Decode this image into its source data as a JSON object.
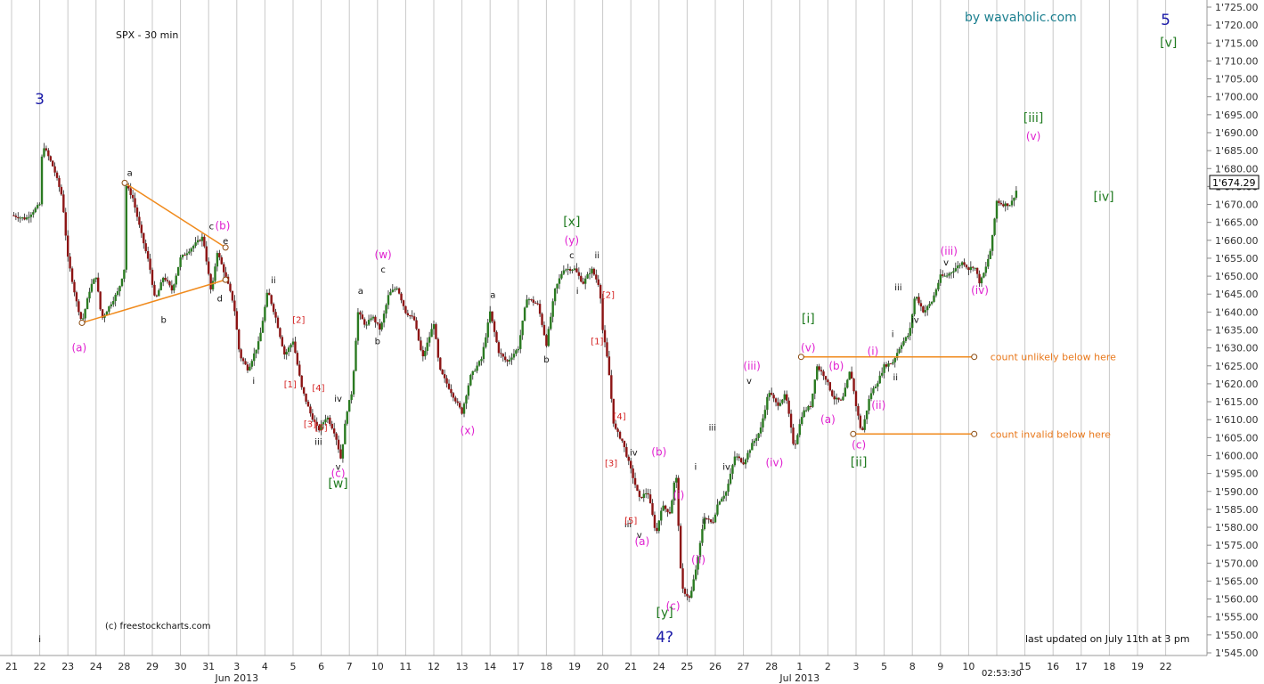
{
  "chart_data": {
    "type": "candlestick",
    "title": "SPX - 30 min",
    "watermark": "by wavaholic.com",
    "credit": "(c) freestockcharts.com",
    "footnote": "last updated on July 11th at 3 pm",
    "clock": "02:53:30",
    "last_price_label": "1'674.29",
    "last_price": 1674.29,
    "ylim": [
      1545,
      1725
    ],
    "y_ticks": [
      "1'545.00",
      "1'550.00",
      "1'555.00",
      "1'560.00",
      "1'565.00",
      "1'570.00",
      "1'575.00",
      "1'580.00",
      "1'585.00",
      "1'590.00",
      "1'595.00",
      "1'600.00",
      "1'605.00",
      "1'610.00",
      "1'615.00",
      "1'620.00",
      "1'625.00",
      "1'630.00",
      "1'635.00",
      "1'640.00",
      "1'645.00",
      "1'650.00",
      "1'655.00",
      "1'660.00",
      "1'665.00",
      "1'670.00",
      "1'675.00",
      "1'680.00",
      "1'685.00",
      "1'690.00",
      "1'695.00",
      "1'700.00",
      "1'705.00",
      "1'710.00",
      "1'715.00",
      "1'720.00",
      "1'725.00"
    ],
    "x_ticks": [
      "21",
      "22",
      "23",
      "24",
      "28",
      "29",
      "30",
      "31",
      "3",
      "4",
      "5",
      "6",
      "7",
      "10",
      "11",
      "12",
      "13",
      "14",
      "17",
      "18",
      "19",
      "20",
      "21",
      "24",
      "25",
      "26",
      "27",
      "28",
      "1",
      "2",
      "3",
      "5",
      "8",
      "9",
      "10",
      "",
      "15",
      "16",
      "17",
      "18",
      "19",
      "22"
    ],
    "month_labels": [
      {
        "text": "Jun 2013",
        "index": 8
      },
      {
        "text": "Jul 2013",
        "index": 28
      }
    ],
    "price_path": [
      [
        0,
        1667
      ],
      [
        0.5,
        1666
      ],
      [
        1,
        1670
      ],
      [
        1.1,
        1687
      ],
      [
        1.5,
        1680
      ],
      [
        1.8,
        1672
      ],
      [
        2,
        1655
      ],
      [
        2.3,
        1643
      ],
      [
        2.5,
        1637
      ],
      [
        2.8,
        1647
      ],
      [
        3,
        1650
      ],
      [
        3.2,
        1638
      ],
      [
        3.5,
        1642
      ],
      [
        3.8,
        1646
      ],
      [
        4,
        1652
      ],
      [
        4.02,
        1676
      ],
      [
        4.3,
        1672
      ],
      [
        4.6,
        1662
      ],
      [
        4.9,
        1653
      ],
      [
        5.1,
        1643
      ],
      [
        5.4,
        1650
      ],
      [
        5.7,
        1646
      ],
      [
        6,
        1655
      ],
      [
        6.4,
        1658
      ],
      [
        6.8,
        1661
      ],
      [
        7.1,
        1645
      ],
      [
        7.3,
        1657
      ],
      [
        7.6,
        1650
      ],
      [
        7.9,
        1642
      ],
      [
        8.1,
        1628
      ],
      [
        8.4,
        1624
      ],
      [
        8.8,
        1632
      ],
      [
        9.1,
        1646
      ],
      [
        9.4,
        1638
      ],
      [
        9.7,
        1628
      ],
      [
        10,
        1632
      ],
      [
        10.3,
        1619
      ],
      [
        10.6,
        1612
      ],
      [
        10.9,
        1607
      ],
      [
        11.2,
        1611
      ],
      [
        11.5,
        1606
      ],
      [
        11.7,
        1599
      ],
      [
        11.9,
        1612
      ],
      [
        12.1,
        1618
      ],
      [
        12.3,
        1640
      ],
      [
        12.6,
        1636
      ],
      [
        12.8,
        1639
      ],
      [
        13.1,
        1635
      ],
      [
        13.4,
        1645
      ],
      [
        13.7,
        1647
      ],
      [
        14,
        1640
      ],
      [
        14.3,
        1638
      ],
      [
        14.6,
        1627
      ],
      [
        15,
        1637
      ],
      [
        15.2,
        1624
      ],
      [
        15.6,
        1618
      ],
      [
        16,
        1612
      ],
      [
        16.3,
        1622
      ],
      [
        16.7,
        1627
      ],
      [
        17,
        1640
      ],
      [
        17.3,
        1629
      ],
      [
        17.6,
        1626
      ],
      [
        18,
        1630
      ],
      [
        18.3,
        1644
      ],
      [
        18.7,
        1642
      ],
      [
        19,
        1631
      ],
      [
        19.3,
        1646
      ],
      [
        19.6,
        1652
      ],
      [
        20,
        1652
      ],
      [
        20.3,
        1648
      ],
      [
        20.6,
        1652
      ],
      [
        20.9,
        1647
      ],
      [
        21,
        1635
      ],
      [
        21.2,
        1625
      ],
      [
        21.4,
        1608
      ],
      [
        21.7,
        1604
      ],
      [
        22,
        1596
      ],
      [
        22.3,
        1588
      ],
      [
        22.6,
        1590
      ],
      [
        22.9,
        1578
      ],
      [
        23.1,
        1586
      ],
      [
        23.4,
        1584
      ],
      [
        23.6,
        1596
      ],
      [
        23.8,
        1563
      ],
      [
        24.1,
        1560
      ],
      [
        24.4,
        1572
      ],
      [
        24.6,
        1583
      ],
      [
        24.9,
        1581
      ],
      [
        25.1,
        1587
      ],
      [
        25.4,
        1590
      ],
      [
        25.7,
        1600
      ],
      [
        26,
        1598
      ],
      [
        26.3,
        1603
      ],
      [
        26.6,
        1607
      ],
      [
        26.9,
        1618
      ],
      [
        27.2,
        1614
      ],
      [
        27.5,
        1617
      ],
      [
        27.8,
        1602
      ],
      [
        28.1,
        1612
      ],
      [
        28.4,
        1614
      ],
      [
        28.6,
        1625
      ],
      [
        28.9,
        1622
      ],
      [
        29.2,
        1616
      ],
      [
        29.5,
        1615
      ],
      [
        29.8,
        1624
      ],
      [
        30,
        1614
      ],
      [
        30.2,
        1606
      ],
      [
        30.5,
        1617
      ],
      [
        30.8,
        1621
      ],
      [
        31,
        1625
      ],
      [
        31.3,
        1626
      ],
      [
        31.6,
        1631
      ],
      [
        31.9,
        1634
      ],
      [
        32.1,
        1645
      ],
      [
        32.4,
        1640
      ],
      [
        32.7,
        1643
      ],
      [
        33,
        1650
      ],
      [
        33.2,
        1650
      ],
      [
        33.5,
        1652
      ],
      [
        33.8,
        1654
      ],
      [
        34,
        1652
      ],
      [
        34.2,
        1653
      ],
      [
        34.4,
        1648
      ],
      [
        34.6,
        1652
      ],
      [
        34.8,
        1658
      ],
      [
        35,
        1671
      ],
      [
        35.2,
        1670
      ],
      [
        35.5,
        1670
      ],
      [
        35.7,
        1674
      ]
    ],
    "blue_labels": [
      {
        "text": "3",
        "x": 1,
        "y": 1698
      },
      {
        "text": "4?",
        "x": 23.2,
        "y": 1548
      },
      {
        "text": "5",
        "x": 41,
        "y": 1720
      }
    ],
    "green_labels": [
      {
        "text": "[w]",
        "x": 11.6,
        "y": 1591
      },
      {
        "text": "[x]",
        "x": 19.9,
        "y": 1664
      },
      {
        "text": "[y]",
        "x": 23.2,
        "y": 1555
      },
      {
        "text": "[i]",
        "x": 28.3,
        "y": 1637
      },
      {
        "text": "[ii]",
        "x": 30.1,
        "y": 1597
      },
      {
        "text": "[iii]",
        "x": 36.3,
        "y": 1693
      },
      {
        "text": "[iv]",
        "x": 38.8,
        "y": 1671
      },
      {
        "text": "[v]",
        "x": 41.1,
        "y": 1714
      }
    ],
    "magenta_labels": [
      {
        "text": "(a)",
        "x": 2.4,
        "y": 1629
      },
      {
        "text": "(b)",
        "x": 7.5,
        "y": 1663
      },
      {
        "text": "(c)",
        "x": 11.6,
        "y": 1594
      },
      {
        "text": "(w)",
        "x": 13.2,
        "y": 1655
      },
      {
        "text": "(x)",
        "x": 16.2,
        "y": 1606
      },
      {
        "text": "(y)",
        "x": 19.9,
        "y": 1659
      },
      {
        "text": "(b)",
        "x": 23,
        "y": 1600
      },
      {
        "text": "(i)",
        "x": 23.7,
        "y": 1588
      },
      {
        "text": "(a)",
        "x": 22.4,
        "y": 1575
      },
      {
        "text": "(ii)",
        "x": 24.4,
        "y": 1570
      },
      {
        "text": "(c)",
        "x": 23.5,
        "y": 1557
      },
      {
        "text": "(iii)",
        "x": 26.3,
        "y": 1624
      },
      {
        "text": "(iv)",
        "x": 27.1,
        "y": 1597
      },
      {
        "text": "(v)",
        "x": 28.3,
        "y": 1629
      },
      {
        "text": "(a)",
        "x": 29,
        "y": 1609
      },
      {
        "text": "(b)",
        "x": 29.3,
        "y": 1624
      },
      {
        "text": "(c)",
        "x": 30.1,
        "y": 1602
      },
      {
        "text": "(ii)",
        "x": 30.8,
        "y": 1613
      },
      {
        "text": "(i)",
        "x": 30.6,
        "y": 1628
      },
      {
        "text": "(iii)",
        "x": 33.3,
        "y": 1656
      },
      {
        "text": "(iv)",
        "x": 34.4,
        "y": 1645
      },
      {
        "text": "(v)",
        "x": 36.3,
        "y": 1688
      }
    ],
    "red_labels": [
      {
        "text": "[2]",
        "x": 10.2,
        "y": 1637
      },
      {
        "text": "[1]",
        "x": 9.9,
        "y": 1619
      },
      {
        "text": "[4]",
        "x": 10.9,
        "y": 1618
      },
      {
        "text": "[3]",
        "x": 10.6,
        "y": 1608
      },
      {
        "text": "[5]",
        "x": 11,
        "y": 1607
      },
      {
        "text": "[2]",
        "x": 21.2,
        "y": 1644
      },
      {
        "text": "[1]",
        "x": 20.8,
        "y": 1631
      },
      {
        "text": "[4]",
        "x": 21.6,
        "y": 1610
      },
      {
        "text": "[3]",
        "x": 21.3,
        "y": 1597
      },
      {
        "text": "[5]",
        "x": 22,
        "y": 1581
      }
    ],
    "black_labels": [
      {
        "text": "i",
        "x": 1,
        "y": 1548
      },
      {
        "text": "a",
        "x": 4.2,
        "y": 1678
      },
      {
        "text": "b",
        "x": 5.4,
        "y": 1637
      },
      {
        "text": "c",
        "x": 7.1,
        "y": 1663
      },
      {
        "text": "e",
        "x": 7.6,
        "y": 1659
      },
      {
        "text": "d",
        "x": 7.4,
        "y": 1643
      },
      {
        "text": "ii",
        "x": 9.3,
        "y": 1648
      },
      {
        "text": "i",
        "x": 8.6,
        "y": 1620
      },
      {
        "text": "iv",
        "x": 11.6,
        "y": 1615
      },
      {
        "text": "iii",
        "x": 10.9,
        "y": 1603
      },
      {
        "text": "v",
        "x": 11.6,
        "y": 1596
      },
      {
        "text": "a",
        "x": 12.4,
        "y": 1645
      },
      {
        "text": "b",
        "x": 13,
        "y": 1631
      },
      {
        "text": "c",
        "x": 13.2,
        "y": 1651
      },
      {
        "text": "a",
        "x": 17.1,
        "y": 1644
      },
      {
        "text": "b",
        "x": 19,
        "y": 1626
      },
      {
        "text": "c",
        "x": 19.9,
        "y": 1655
      },
      {
        "text": "ii",
        "x": 20.8,
        "y": 1655
      },
      {
        "text": "i",
        "x": 20.1,
        "y": 1645
      },
      {
        "text": "iv",
        "x": 22.1,
        "y": 1600
      },
      {
        "text": "iii",
        "x": 21.9,
        "y": 1580
      },
      {
        "text": "v",
        "x": 22.3,
        "y": 1577
      },
      {
        "text": "i",
        "x": 24.3,
        "y": 1596
      },
      {
        "text": "ii",
        "x": 24.6,
        "y": 1581
      },
      {
        "text": "iii",
        "x": 24.9,
        "y": 1607
      },
      {
        "text": "iv",
        "x": 25.4,
        "y": 1596
      },
      {
        "text": "v",
        "x": 26.2,
        "y": 1620
      },
      {
        "text": "i",
        "x": 31.3,
        "y": 1633
      },
      {
        "text": "ii",
        "x": 31.4,
        "y": 1621
      },
      {
        "text": "iii",
        "x": 31.5,
        "y": 1646
      },
      {
        "text": "iv",
        "x": 32.1,
        "y": 1637
      },
      {
        "text": "v",
        "x": 33.2,
        "y": 1653
      }
    ],
    "triangle_lines": [
      {
        "from": [
          4.02,
          1676
        ],
        "to": [
          7.6,
          1658
        ]
      },
      {
        "from": [
          2.5,
          1637
        ],
        "to": [
          7.6,
          1649
        ]
      }
    ],
    "levels": [
      {
        "text": "count unlikely below here",
        "price": 1627.5,
        "from": 28.05,
        "to": 34.2
      },
      {
        "text": "count invalid below here",
        "price": 1606,
        "from": 29.9,
        "to": 34.2
      }
    ]
  }
}
